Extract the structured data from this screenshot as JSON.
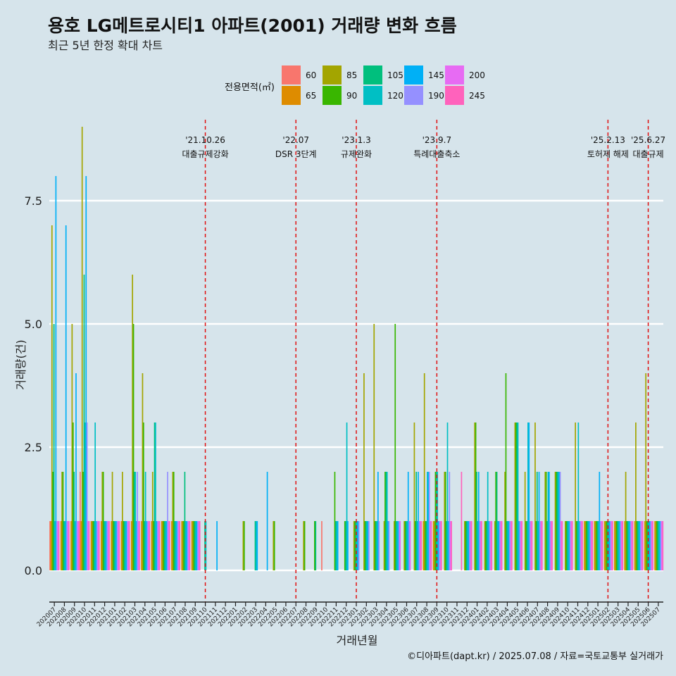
{
  "header": {
    "title": "용호 LG메트로시티1 아파트(2001) 거래량 변화 흐름",
    "subtitle": "최근 5년 한정 확대 차트"
  },
  "caption": "©디아파트(dapt.kr) / 2025.07.08 / 자료=국토교통부 실거래가",
  "legend": {
    "title": "전용면적(㎡)",
    "items": [
      {
        "label": "60",
        "color": "#f8766d"
      },
      {
        "label": "65",
        "color": "#de8c00"
      },
      {
        "label": "85",
        "color": "#a3a500"
      },
      {
        "label": "90",
        "color": "#39b600"
      },
      {
        "label": "105",
        "color": "#00bf7d"
      },
      {
        "label": "120",
        "color": "#00bfc4"
      },
      {
        "label": "145",
        "color": "#00b0f6"
      },
      {
        "label": "190",
        "color": "#9590ff"
      },
      {
        "label": "200",
        "color": "#e76bf3"
      },
      {
        "label": "245",
        "color": "#ff62bc"
      }
    ]
  },
  "chart_data": {
    "type": "bar",
    "title": "용호 LG메트로시티1 아파트(2001) 거래량 변화 흐름",
    "xlabel": "거래년월",
    "ylabel": "거래량(건)",
    "ylim": [
      -0.5,
      9.0
    ],
    "yticks": [
      "0.0",
      "2.5",
      "5.0",
      "7.5"
    ],
    "ytick_values": [
      0,
      2.5,
      5,
      7.5
    ],
    "categories": [
      "202007",
      "202008",
      "202009",
      "202010",
      "202011",
      "202012",
      "202101",
      "202102",
      "202103",
      "202104",
      "202105",
      "202106",
      "202107",
      "202108",
      "202109",
      "202110",
      "202111",
      "202112",
      "202201",
      "202202",
      "202203",
      "202204",
      "202205",
      "202206",
      "202207",
      "202208",
      "202209",
      "202210",
      "202211",
      "202212",
      "202301",
      "202302",
      "202303",
      "202304",
      "202305",
      "202306",
      "202307",
      "202308",
      "202309",
      "202310",
      "202311",
      "202312",
      "202401",
      "202402",
      "202403",
      "202404",
      "202405",
      "202406",
      "202407",
      "202408",
      "202409",
      "202410",
      "202411",
      "202412",
      "202501",
      "202502",
      "202503",
      "202504",
      "202505",
      "202506",
      "202507"
    ],
    "series": [
      {
        "name": "60",
        "values": [
          1,
          0,
          0,
          2,
          0,
          0,
          0,
          0,
          0,
          0,
          0,
          0,
          0,
          0,
          0,
          0,
          0,
          0,
          0,
          0,
          0,
          0,
          0,
          0,
          0,
          0,
          0,
          1,
          0,
          0,
          0,
          0,
          0,
          0,
          0,
          0,
          0,
          0,
          0,
          0,
          0,
          0,
          0,
          0,
          0,
          0,
          0,
          0,
          0,
          0,
          0,
          0,
          0,
          0,
          0,
          0,
          0,
          0,
          0,
          0,
          0
        ]
      },
      {
        "name": "65",
        "values": [
          1,
          1,
          1,
          1,
          1,
          1,
          1,
          1,
          1,
          1,
          1,
          1,
          1,
          1,
          1,
          0,
          0,
          0,
          0,
          0,
          0,
          0,
          0,
          0,
          0,
          0,
          0,
          0,
          0,
          0,
          0,
          0,
          0,
          0,
          0,
          0,
          0,
          1,
          1,
          0,
          0,
          0,
          0,
          0,
          0,
          0,
          0,
          0,
          0,
          0,
          0,
          0,
          0,
          1,
          1,
          1,
          1,
          1,
          1,
          1,
          1
        ]
      },
      {
        "name": "85",
        "values": [
          7,
          2,
          5,
          9,
          1,
          2,
          2,
          2,
          6,
          4,
          2,
          1,
          2,
          1,
          1,
          0,
          0,
          0,
          0,
          1,
          0,
          0,
          1,
          0,
          0,
          1,
          0,
          0,
          0,
          0,
          1,
          4,
          5,
          1,
          1,
          1,
          3,
          4,
          1,
          2,
          0,
          1,
          3,
          1,
          1,
          2,
          3,
          2,
          3,
          2,
          2,
          1,
          3,
          1,
          1,
          1,
          1,
          2,
          3,
          4,
          1
        ]
      },
      {
        "name": "90",
        "values": [
          2,
          2,
          3,
          2,
          1,
          2,
          1,
          1,
          5,
          3,
          1,
          1,
          2,
          1,
          1,
          0,
          0,
          0,
          0,
          1,
          0,
          0,
          1,
          0,
          0,
          1,
          1,
          0,
          2,
          1,
          1,
          1,
          1,
          2,
          5,
          1,
          1,
          1,
          2,
          2,
          0,
          1,
          3,
          1,
          2,
          4,
          3,
          1,
          1,
          2,
          2,
          1,
          1,
          1,
          1,
          1,
          1,
          1,
          1,
          1,
          1
        ]
      },
      {
        "name": "105",
        "values": [
          5,
          1,
          2,
          6,
          1,
          1,
          1,
          1,
          2,
          1,
          3,
          1,
          1,
          2,
          1,
          1,
          0,
          0,
          0,
          0,
          1,
          0,
          0,
          0,
          0,
          0,
          1,
          0,
          1,
          1,
          1,
          1,
          1,
          2,
          1,
          1,
          2,
          1,
          2,
          1,
          0,
          1,
          2,
          1,
          2,
          1,
          3,
          1,
          2,
          1,
          2,
          1,
          1,
          1,
          1,
          1,
          1,
          1,
          1,
          1,
          1
        ]
      },
      {
        "name": "120",
        "values": [
          1,
          1,
          1,
          3,
          3,
          1,
          1,
          1,
          2,
          2,
          3,
          1,
          1,
          1,
          1,
          1,
          0,
          0,
          0,
          0,
          1,
          0,
          0,
          0,
          0,
          0,
          0,
          0,
          1,
          3,
          1,
          1,
          1,
          2,
          1,
          1,
          1,
          2,
          2,
          3,
          0,
          1,
          1,
          2,
          1,
          1,
          3,
          3,
          1,
          2,
          2,
          1,
          3,
          1,
          1,
          1,
          1,
          1,
          1,
          1,
          1
        ]
      },
      {
        "name": "145",
        "values": [
          8,
          7,
          4,
          8,
          1,
          1,
          1,
          1,
          1,
          1,
          1,
          1,
          1,
          1,
          1,
          0,
          1,
          0,
          0,
          0,
          1,
          2,
          0,
          0,
          0,
          0,
          0,
          0,
          1,
          1,
          1,
          1,
          2,
          1,
          1,
          2,
          2,
          2,
          1,
          1,
          0,
          1,
          2,
          1,
          1,
          1,
          1,
          3,
          2,
          2,
          2,
          1,
          1,
          1,
          2,
          1,
          1,
          1,
          1,
          1,
          1
        ]
      },
      {
        "name": "190",
        "values": [
          1,
          1,
          1,
          3,
          1,
          1,
          1,
          1,
          2,
          1,
          1,
          2,
          1,
          1,
          1,
          0,
          0,
          0,
          0,
          0,
          0,
          0,
          0,
          0,
          0,
          0,
          0,
          0,
          0,
          0,
          1,
          1,
          1,
          1,
          1,
          1,
          1,
          2,
          1,
          2,
          0,
          1,
          1,
          1,
          1,
          1,
          1,
          1,
          1,
          1,
          2,
          1,
          1,
          1,
          1,
          1,
          1,
          1,
          1,
          1,
          1
        ]
      },
      {
        "name": "200",
        "values": [
          1,
          1,
          1,
          1,
          1,
          1,
          1,
          1,
          1,
          1,
          1,
          1,
          1,
          1,
          1,
          0,
          0,
          0,
          0,
          0,
          0,
          0,
          0,
          0,
          0,
          0,
          0,
          0,
          0,
          0,
          0,
          0,
          0,
          0,
          1,
          1,
          1,
          1,
          1,
          1,
          0,
          1,
          1,
          1,
          1,
          1,
          1,
          1,
          1,
          1,
          1,
          1,
          1,
          1,
          1,
          1,
          1,
          1,
          1,
          1,
          1
        ]
      },
      {
        "name": "245",
        "values": [
          1,
          1,
          1,
          1,
          1,
          1,
          1,
          1,
          1,
          1,
          1,
          1,
          1,
          1,
          1,
          0,
          0,
          0,
          0,
          0,
          0,
          0,
          0,
          0,
          0,
          0,
          0,
          0,
          0,
          0,
          0,
          0,
          0,
          0,
          0,
          0,
          1,
          1,
          1,
          1,
          2,
          1,
          1,
          1,
          1,
          1,
          1,
          1,
          1,
          1,
          1,
          1,
          1,
          1,
          1,
          1,
          1,
          1,
          1,
          1,
          1
        ]
      }
    ],
    "events": [
      {
        "month": "202110",
        "date": "'21.10.26",
        "label": "대출규제강화"
      },
      {
        "month": "202207",
        "date": "'22.07",
        "label": "DSR 3단계"
      },
      {
        "month": "202301",
        "date": "'23.1.3",
        "label": "규제완화"
      },
      {
        "month": "202309",
        "date": "'23.9.7",
        "label": "특례대출축소"
      },
      {
        "month": "202502",
        "date": "'25.2.13",
        "label": "토허제 해제"
      },
      {
        "month": "202506",
        "date": "'25.6.27",
        "label": "대출규제"
      }
    ]
  }
}
